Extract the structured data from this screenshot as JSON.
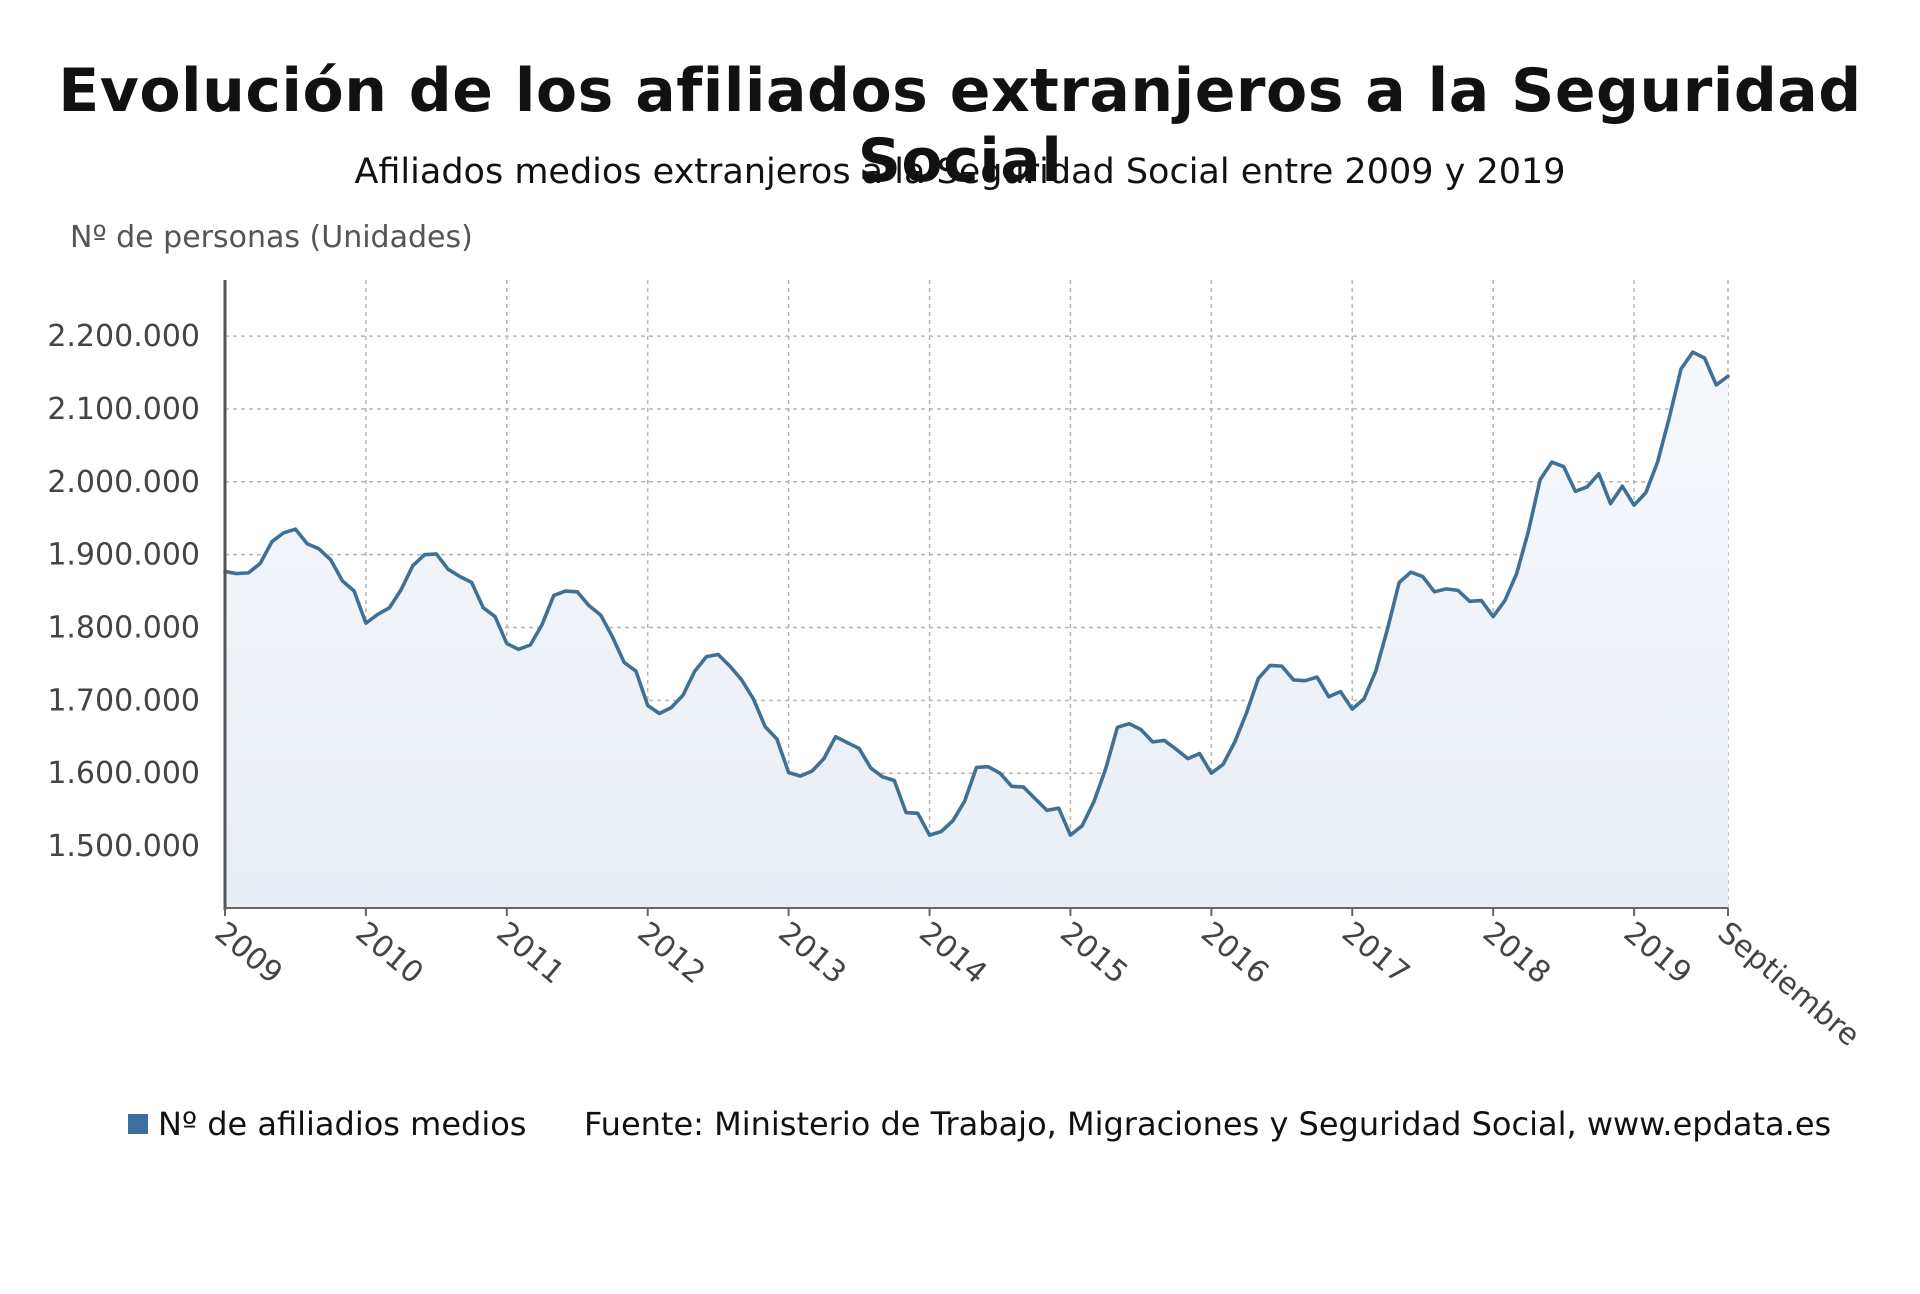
{
  "title": "Evolución de los afiliados extranjeros a la Seguridad Social",
  "subtitle": "Afiliados medios extranjeros a la Seguridad Social entre 2009 y 2019",
  "legend_label": "Nº de afiliadios medios",
  "source": "Fuente: Ministerio de Trabajo, Migraciones y Seguridad Social, www.epdata.es",
  "colors": {
    "line": "#3f7196",
    "fill_top": "#f6f8fb",
    "fill_bottom": "#e8eef5",
    "grid": "#b5b5b5",
    "legend_swatch": "#3a6f9f"
  },
  "chart_data": {
    "type": "area",
    "title": "Evolución de los afiliados extranjeros a la Seguridad Social",
    "subtitle": "Afiliados medios extranjeros a la Seguridad Social entre 2009 y 2019",
    "ylabel": "Nº de personas (Unidades)",
    "yticks": [
      1500000,
      1600000,
      1700000,
      1800000,
      1900000,
      2000000,
      2100000,
      2200000
    ],
    "ytick_labels": [
      "1.500.000",
      "1.600.000",
      "1.700.000",
      "1.800.000",
      "1.900.000",
      "2.000.000",
      "2.100.000",
      "2.200.000"
    ],
    "xtick_labels": [
      "2009",
      "2010",
      "2011",
      "2012",
      "2013",
      "2014",
      "2015",
      "2016",
      "2017",
      "2018",
      "2019",
      "Septiembre"
    ],
    "ylim": [
      1415000,
      2277000
    ],
    "grid": true,
    "legend_position": "bottom-left",
    "series": [
      {
        "name": "Nº de afiliadios medios",
        "values": [
          1877000,
          1874000,
          1875000,
          1888000,
          1918000,
          1930000,
          1935000,
          1915000,
          1908000,
          1893000,
          1864000,
          1850000,
          1806000,
          1818000,
          1827000,
          1852000,
          1885000,
          1900000,
          1901000,
          1880000,
          1870000,
          1862000,
          1827000,
          1815000,
          1778000,
          1770000,
          1776000,
          1804000,
          1844000,
          1850000,
          1849000,
          1830000,
          1817000,
          1787000,
          1752000,
          1740000,
          1693000,
          1682000,
          1690000,
          1707000,
          1740000,
          1760000,
          1763000,
          1747000,
          1728000,
          1702000,
          1664000,
          1647000,
          1601000,
          1596000,
          1603000,
          1620000,
          1650000,
          1642000,
          1634000,
          1607000,
          1595000,
          1590000,
          1546000,
          1545000,
          1515000,
          1520000,
          1535000,
          1562000,
          1608000,
          1609000,
          1600000,
          1582000,
          1581000,
          1565000,
          1549000,
          1552000,
          1515000,
          1528000,
          1561000,
          1606000,
          1663000,
          1668000,
          1660000,
          1643000,
          1645000,
          1633000,
          1620000,
          1627000,
          1600000,
          1612000,
          1643000,
          1683000,
          1730000,
          1748000,
          1747000,
          1728000,
          1727000,
          1732000,
          1705000,
          1712000,
          1688000,
          1702000,
          1740000,
          1798000,
          1862000,
          1876000,
          1870000,
          1849000,
          1853000,
          1851000,
          1836000,
          1837000,
          1815000,
          1837000,
          1874000,
          1932000,
          2003000,
          2027000,
          2021000,
          1987000,
          1993000,
          2011000,
          1970000,
          1994000,
          1968000,
          1985000,
          2027000,
          2088000,
          2155000,
          2178000,
          2170000,
          2133000,
          2145000
        ]
      }
    ]
  }
}
